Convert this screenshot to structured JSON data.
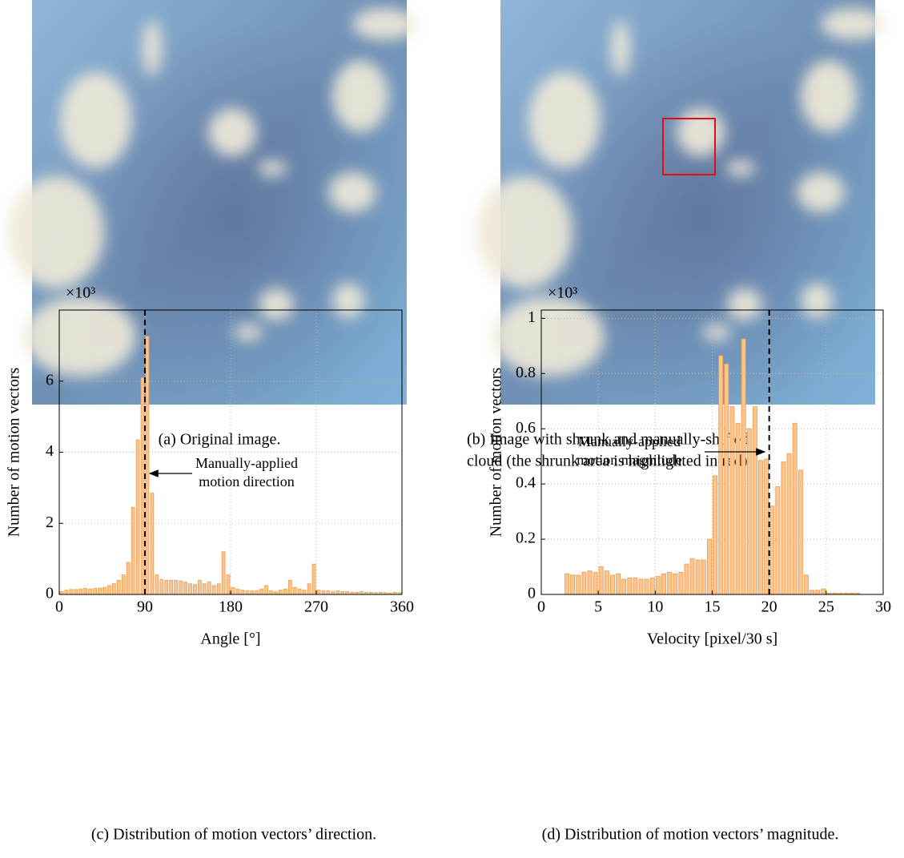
{
  "panels": [
    {
      "caption": [
        "(a) Original image."
      ]
    },
    {
      "caption": [
        "(b) Image with shrunk and manually-shifted",
        "cloud (the shrunk area is highlighted in red)."
      ]
    }
  ],
  "chart_data": [
    {
      "type": "histogram",
      "caption": "(c) Distribution of motion vectors’ direction.",
      "xlabel": "Angle [°]",
      "ylabel": "Number of motion vectors",
      "y_multiplier": "×10³",
      "color": "#fcc48e",
      "edge_color": "#f09a48",
      "grid": true,
      "xlim": [
        0,
        360
      ],
      "xticks": [
        0,
        90,
        180,
        270,
        360
      ],
      "ylim": [
        0,
        8
      ],
      "yticks": [
        0,
        2,
        4,
        6
      ],
      "vline": 90,
      "annotation": [
        "Manually-applied",
        "motion direction"
      ],
      "bins": [
        0,
        5,
        10,
        15,
        20,
        25,
        30,
        35,
        40,
        45,
        50,
        55,
        60,
        65,
        70,
        75,
        80,
        85,
        90,
        95,
        100,
        105,
        110,
        115,
        120,
        125,
        130,
        135,
        140,
        145,
        150,
        155,
        160,
        165,
        170,
        175,
        180,
        185,
        190,
        195,
        200,
        205,
        210,
        215,
        220,
        225,
        230,
        235,
        240,
        245,
        250,
        255,
        260,
        265,
        270,
        275,
        280,
        285,
        290,
        295,
        300,
        305,
        310,
        315,
        320,
        325,
        330,
        335,
        340,
        345,
        350,
        355,
        360
      ],
      "values": [
        0.08,
        0.12,
        0.14,
        0.14,
        0.15,
        0.17,
        0.15,
        0.17,
        0.18,
        0.2,
        0.25,
        0.3,
        0.4,
        0.55,
        0.9,
        2.45,
        4.35,
        6.1,
        7.26,
        2.85,
        0.55,
        0.42,
        0.4,
        0.4,
        0.4,
        0.38,
        0.35,
        0.3,
        0.28,
        0.4,
        0.3,
        0.35,
        0.25,
        0.3,
        1.2,
        0.55,
        0.2,
        0.15,
        0.12,
        0.1,
        0.1,
        0.1,
        0.15,
        0.25,
        0.1,
        0.08,
        0.12,
        0.15,
        0.4,
        0.2,
        0.15,
        0.12,
        0.3,
        0.85,
        0.12,
        0.1,
        0.1,
        0.08,
        0.1,
        0.08,
        0.08,
        0.06,
        0.06,
        0.08,
        0.06,
        0.06,
        0.05,
        0.06,
        0.05,
        0.04,
        0.06,
        0.05
      ]
    },
    {
      "type": "histogram",
      "caption": "(d) Distribution of motion vectors’ magnitude.",
      "xlabel": "Velocity [pixel/30 s]",
      "ylabel": "Number of motion vectors",
      "y_multiplier": "×10³",
      "color": "#fcc48e",
      "edge_color": "#f09a48",
      "grid": true,
      "xlim": [
        0,
        30
      ],
      "xticks": [
        0,
        5,
        10,
        15,
        20,
        25,
        30
      ],
      "ylim": [
        0,
        1.03
      ],
      "yticks": [
        0,
        0.2,
        0.4,
        0.6,
        0.8,
        1
      ],
      "vline": 20,
      "annotation": [
        "Manually-applied",
        "motion magnitude"
      ],
      "bins": [
        2,
        2.5,
        3,
        3.5,
        4,
        4.5,
        5,
        5.5,
        6,
        6.5,
        7,
        7.5,
        8,
        8.5,
        9,
        9.5,
        10,
        10.5,
        11,
        11.5,
        12,
        12.5,
        13,
        13.5,
        14,
        14.5,
        15,
        15.5,
        16,
        16.5,
        17,
        17.5,
        18,
        18.5,
        19,
        19.5,
        20,
        20.5,
        21,
        21.5,
        22,
        22.5,
        23,
        23.5,
        24,
        24.5,
        25,
        25.5,
        26,
        26.5,
        27,
        27.5,
        28
      ],
      "values": [
        0.075,
        0.07,
        0.07,
        0.08,
        0.085,
        0.08,
        0.1,
        0.085,
        0.07,
        0.075,
        0.055,
        0.06,
        0.06,
        0.055,
        0.055,
        0.06,
        0.065,
        0.075,
        0.08,
        0.075,
        0.08,
        0.11,
        0.13,
        0.125,
        0.125,
        0.2,
        0.43,
        0.865,
        0.835,
        0.68,
        0.62,
        0.925,
        0.6,
        0.68,
        0.485,
        0.49,
        0.32,
        0.39,
        0.48,
        0.51,
        0.62,
        0.45,
        0.07,
        0.015,
        0.015,
        0.02,
        0.005,
        0.005,
        0.005,
        0.005,
        0.005,
        0.005
      ]
    }
  ]
}
